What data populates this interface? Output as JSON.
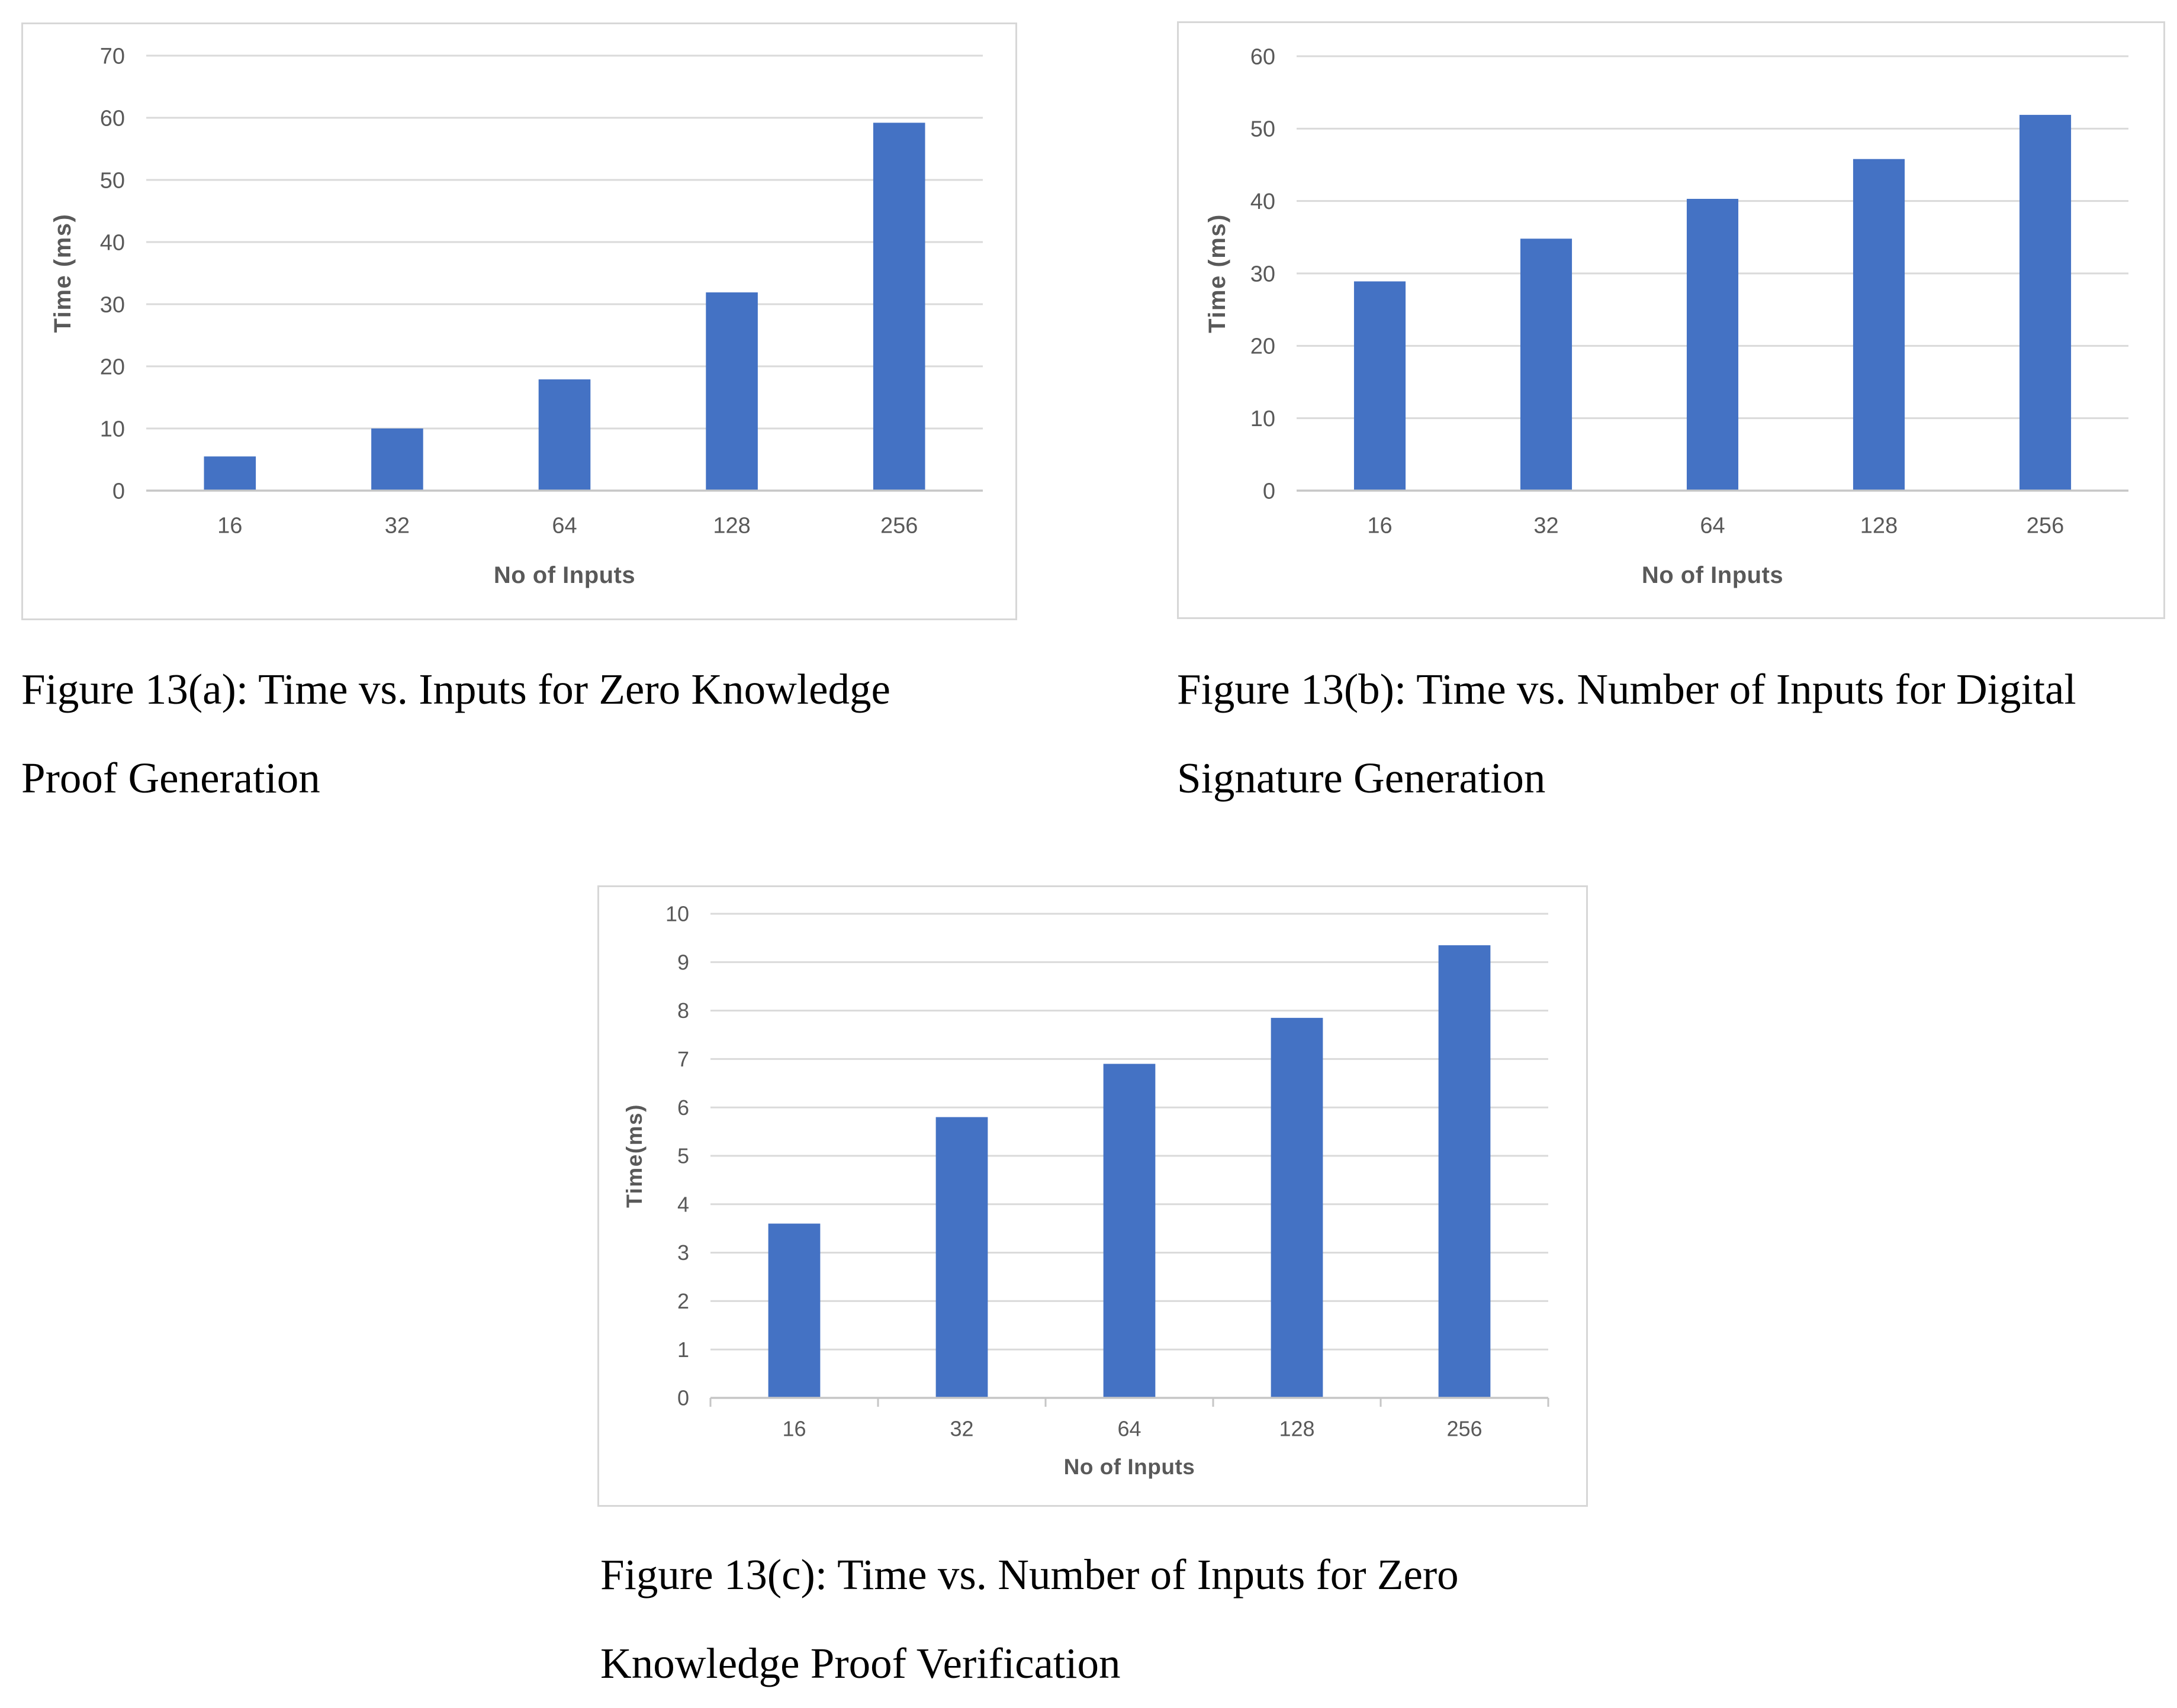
{
  "colors": {
    "bar": "#4472C4",
    "gridline": "#DADADA",
    "axis_line": "#C6C6C6",
    "tick_label": "#595959",
    "axis_title": "#595959",
    "panel_border": "#D7D7D7",
    "caption_text": "#000000"
  },
  "figures": [
    {
      "id": "13a",
      "caption_lines": [
        "Figure 13(a): Time vs. Inputs for Zero Knowledge",
        "Proof Generation"
      ]
    },
    {
      "id": "13b",
      "caption_lines": [
        "Figure 13(b): Time vs. Number of Inputs for Digital",
        "Signature Generation"
      ]
    },
    {
      "id": "13c",
      "caption_lines": [
        "Figure 13(c): Time vs. Number of Inputs for Zero",
        "Knowledge Proof Verification"
      ]
    }
  ],
  "chart_data": [
    {
      "type": "bar",
      "title": "",
      "categories": [
        "16",
        "32",
        "64",
        "128",
        "256"
      ],
      "values": [
        5.5,
        10,
        17.9,
        31.9,
        59.2
      ],
      "xlabel": "No of Inputs",
      "ylabel": "Time (ms)",
      "ylim": [
        0,
        70
      ],
      "ytick_step": 10,
      "grid": true,
      "legend": false,
      "x_tick_marks": false
    },
    {
      "type": "bar",
      "title": "",
      "categories": [
        "16",
        "32",
        "64",
        "128",
        "256"
      ],
      "values": [
        28.9,
        34.8,
        40.3,
        45.8,
        51.9
      ],
      "xlabel": "No of Inputs",
      "ylabel": "Time (ms)",
      "ylim": [
        0,
        60
      ],
      "ytick_step": 10,
      "grid": true,
      "legend": false,
      "x_tick_marks": false
    },
    {
      "type": "bar",
      "title": "",
      "categories": [
        "16",
        "32",
        "64",
        "128",
        "256"
      ],
      "values": [
        3.6,
        5.8,
        6.9,
        7.85,
        9.35
      ],
      "xlabel": "No of Inputs",
      "ylabel": "Time(ms)",
      "ylim": [
        0,
        10
      ],
      "ytick_step": 1,
      "grid": true,
      "legend": false,
      "x_tick_marks": true
    }
  ]
}
